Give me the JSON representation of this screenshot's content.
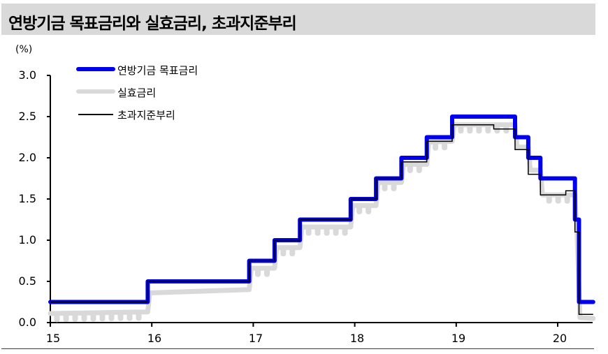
{
  "header": {
    "title": "연방기금 목표금리와 실효금리, 초과지준부리"
  },
  "chart_data": {
    "type": "line",
    "title": "연방기금 목표금리와 실효금리, 초과지준부리",
    "ylabel": "(%)",
    "xlabel": "",
    "ylim": [
      0,
      3.0
    ],
    "xlim": [
      2015,
      2020.35
    ],
    "yticks": [
      "0.0",
      "0.5",
      "1.0",
      "1.5",
      "2.0",
      "2.5",
      "3.0"
    ],
    "xticks": [
      "15",
      "16",
      "17",
      "18",
      "19",
      "20"
    ],
    "grid": false,
    "legend_position": "top-left",
    "series": [
      {
        "name": "연방기금 목표금리",
        "color": "#0000ee",
        "style": "step, thick",
        "points": [
          [
            2015.0,
            0.25
          ],
          [
            2015.96,
            0.25
          ],
          [
            2015.96,
            0.5
          ],
          [
            2016.96,
            0.5
          ],
          [
            2016.96,
            0.75
          ],
          [
            2017.21,
            0.75
          ],
          [
            2017.21,
            1.0
          ],
          [
            2017.46,
            1.0
          ],
          [
            2017.46,
            1.25
          ],
          [
            2017.96,
            1.25
          ],
          [
            2017.96,
            1.5
          ],
          [
            2018.21,
            1.5
          ],
          [
            2018.21,
            1.75
          ],
          [
            2018.46,
            1.75
          ],
          [
            2018.46,
            2.0
          ],
          [
            2018.71,
            2.0
          ],
          [
            2018.71,
            2.25
          ],
          [
            2018.96,
            2.25
          ],
          [
            2018.96,
            2.5
          ],
          [
            2019.58,
            2.5
          ],
          [
            2019.58,
            2.25
          ],
          [
            2019.71,
            2.25
          ],
          [
            2019.71,
            2.0
          ],
          [
            2019.83,
            2.0
          ],
          [
            2019.83,
            1.75
          ],
          [
            2020.17,
            1.75
          ],
          [
            2020.17,
            1.25
          ],
          [
            2020.21,
            1.25
          ],
          [
            2020.21,
            0.25
          ],
          [
            2020.35,
            0.25
          ]
        ]
      },
      {
        "name": "실효금리",
        "color": "#d9d9d9",
        "style": "thick, noisy",
        "points": [
          [
            2015.0,
            0.11
          ],
          [
            2015.96,
            0.13
          ],
          [
            2015.98,
            0.36
          ],
          [
            2016.96,
            0.4
          ],
          [
            2016.98,
            0.66
          ],
          [
            2017.21,
            0.66
          ],
          [
            2017.23,
            0.91
          ],
          [
            2017.46,
            0.91
          ],
          [
            2017.48,
            1.16
          ],
          [
            2017.96,
            1.16
          ],
          [
            2017.98,
            1.42
          ],
          [
            2018.21,
            1.42
          ],
          [
            2018.23,
            1.7
          ],
          [
            2018.46,
            1.7
          ],
          [
            2018.48,
            1.92
          ],
          [
            2018.71,
            1.92
          ],
          [
            2018.73,
            2.19
          ],
          [
            2018.96,
            2.2
          ],
          [
            2018.98,
            2.4
          ],
          [
            2019.58,
            2.4
          ],
          [
            2019.6,
            2.13
          ],
          [
            2019.71,
            2.13
          ],
          [
            2019.73,
            1.85
          ],
          [
            2019.83,
            1.85
          ],
          [
            2019.85,
            1.55
          ],
          [
            2020.17,
            1.55
          ],
          [
            2020.19,
            1.1
          ],
          [
            2020.22,
            0.06
          ],
          [
            2020.35,
            0.05
          ]
        ]
      },
      {
        "name": "초과지준부리",
        "color": "#000000",
        "style": "step, thin",
        "points": [
          [
            2015.0,
            0.25
          ],
          [
            2015.96,
            0.25
          ],
          [
            2015.96,
            0.5
          ],
          [
            2016.96,
            0.5
          ],
          [
            2016.96,
            0.75
          ],
          [
            2017.21,
            0.75
          ],
          [
            2017.21,
            1.0
          ],
          [
            2017.46,
            1.0
          ],
          [
            2017.46,
            1.25
          ],
          [
            2017.96,
            1.25
          ],
          [
            2017.96,
            1.5
          ],
          [
            2018.21,
            1.5
          ],
          [
            2018.21,
            1.75
          ],
          [
            2018.46,
            1.75
          ],
          [
            2018.46,
            1.95
          ],
          [
            2018.71,
            1.95
          ],
          [
            2018.71,
            2.2
          ],
          [
            2018.96,
            2.2
          ],
          [
            2018.96,
            2.4
          ],
          [
            2019.37,
            2.4
          ],
          [
            2019.37,
            2.35
          ],
          [
            2019.58,
            2.35
          ],
          [
            2019.58,
            2.1
          ],
          [
            2019.71,
            2.1
          ],
          [
            2019.71,
            1.8
          ],
          [
            2019.83,
            1.8
          ],
          [
            2019.83,
            1.55
          ],
          [
            2020.08,
            1.55
          ],
          [
            2020.08,
            1.6
          ],
          [
            2020.17,
            1.6
          ],
          [
            2020.17,
            1.1
          ],
          [
            2020.21,
            1.1
          ],
          [
            2020.21,
            0.1
          ],
          [
            2020.35,
            0.1
          ]
        ]
      }
    ]
  },
  "legend": {
    "items": [
      {
        "label": "연방기금 목표금리"
      },
      {
        "label": "실효금리"
      },
      {
        "label": "초과지준부리"
      }
    ]
  }
}
